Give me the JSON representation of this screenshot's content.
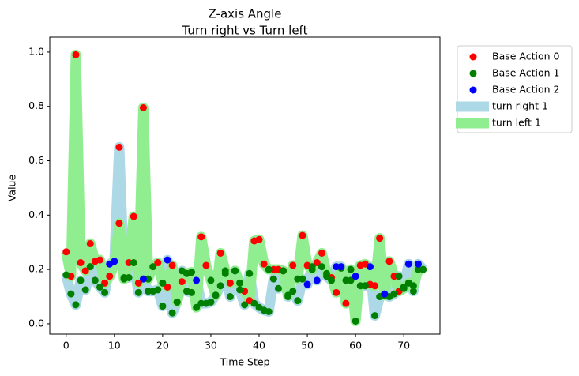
{
  "chart_data": {
    "type": "scatter",
    "title": "Z-axis Angle",
    "subtitle": "Turn right vs Turn left",
    "xlabel": "Time Step",
    "ylabel": "Value",
    "xlim": [
      -3.4,
      77.5
    ],
    "ylim": [
      -0.038,
      1.055
    ],
    "xticks": [
      0,
      10,
      20,
      30,
      40,
      50,
      60,
      70
    ],
    "yticks": [
      {
        "value": 0,
        "label": "0.0"
      },
      {
        "value": 0.2,
        "label": "0.2"
      },
      {
        "value": 0.4,
        "label": "0.4"
      },
      {
        "value": 0.6,
        "label": "0.6"
      },
      {
        "value": 0.8,
        "label": "0.8"
      },
      {
        "value": 1,
        "label": "1.0"
      }
    ],
    "legend": "outside-upper-right",
    "x": [
      0,
      1,
      2,
      3,
      4,
      5,
      6,
      7,
      8,
      9,
      10,
      11,
      12,
      13,
      14,
      15,
      16,
      17,
      18,
      19,
      20,
      21,
      22,
      23,
      24,
      25,
      26,
      27,
      28,
      29,
      30,
      31,
      32,
      33,
      34,
      35,
      36,
      37,
      38,
      39,
      40,
      41,
      42,
      43,
      44,
      45,
      46,
      47,
      48,
      49,
      50,
      51,
      52,
      53,
      54,
      55,
      56,
      57,
      58,
      59,
      60,
      61,
      62,
      63,
      64,
      65,
      66,
      67,
      68,
      69,
      70,
      71,
      72,
      73,
      74
    ],
    "line_series": [
      {
        "name": "turn right 1",
        "color": "#add8e6",
        "values": [
          0.18,
          0.11,
          0.07,
          0.16,
          0.125,
          0.21,
          0.16,
          0.135,
          0.115,
          0.22,
          0.23,
          0.65,
          0.17,
          0.17,
          0.225,
          0.115,
          0.165,
          0.12,
          0.12,
          0.125,
          0.065,
          0.235,
          0.04,
          0.08,
          0.195,
          0.12,
          0.115,
          0.16,
          0.075,
          0.075,
          0.08,
          0.105,
          0.14,
          0.185,
          0.1,
          0.195,
          0.125,
          0.07,
          0.185,
          0.075,
          0.06,
          0.05,
          0.045,
          0.165,
          0.13,
          0.195,
          0.1,
          0.12,
          0.085,
          0.165,
          0.145,
          0.21,
          0.16,
          0.21,
          0.175,
          0.16,
          0.21,
          0.21,
          0.16,
          0.16,
          0.175,
          0.14,
          0.14,
          0.21,
          0.03,
          0.1,
          0.11,
          0.1,
          0.11,
          0.175,
          0.135,
          0.22,
          0.12,
          0.22,
          0.2
        ]
      },
      {
        "name": "turn left 1",
        "color": "#90ee90",
        "values": [
          0.265,
          0.175,
          0.99,
          0.225,
          0.195,
          0.295,
          0.23,
          0.235,
          0.15,
          0.175,
          0.22,
          0.37,
          0.165,
          0.225,
          0.395,
          0.15,
          0.795,
          0.165,
          0.21,
          0.225,
          0.15,
          0.135,
          0.215,
          0.08,
          0.155,
          0.185,
          0.19,
          0.06,
          0.32,
          0.215,
          0.16,
          0.105,
          0.26,
          0.195,
          0.15,
          0.195,
          0.15,
          0.12,
          0.085,
          0.305,
          0.31,
          0.22,
          0.2,
          0.2,
          0.2,
          0.195,
          0.105,
          0.215,
          0.165,
          0.325,
          0.215,
          0.2,
          0.225,
          0.26,
          0.185,
          0.17,
          0.115,
          0.205,
          0.075,
          0.2,
          0.01,
          0.215,
          0.22,
          0.145,
          0.14,
          0.315,
          0.105,
          0.23,
          0.175,
          0.12,
          0.13,
          0.15,
          0.14,
          0.2,
          0.2
        ]
      }
    ],
    "series": [
      {
        "name": "Base Action 0",
        "color": "red",
        "x": [
          0,
          1,
          2,
          3,
          4,
          5,
          6,
          7,
          8,
          9,
          11,
          11,
          13,
          14,
          15,
          16,
          19,
          21,
          22,
          24,
          28,
          29,
          32,
          34,
          37,
          38,
          39,
          40,
          41,
          43,
          44,
          45,
          47,
          49,
          50,
          52,
          53,
          55,
          56,
          58,
          61,
          62,
          63,
          64,
          65,
          67,
          68,
          69
        ],
        "values": [
          0.265,
          0.175,
          0.99,
          0.225,
          0.195,
          0.295,
          0.23,
          0.235,
          0.15,
          0.175,
          0.37,
          0.65,
          0.225,
          0.395,
          0.15,
          0.795,
          0.225,
          0.135,
          0.215,
          0.155,
          0.32,
          0.215,
          0.26,
          0.15,
          0.12,
          0.085,
          0.305,
          0.31,
          0.22,
          0.2,
          0.2,
          0.195,
          0.215,
          0.325,
          0.215,
          0.225,
          0.26,
          0.17,
          0.115,
          0.075,
          0.215,
          0.22,
          0.145,
          0.14,
          0.315,
          0.23,
          0.175,
          0.12
        ]
      },
      {
        "name": "Base Action 1",
        "color": "green",
        "x": [
          12,
          17,
          18,
          20,
          23,
          25,
          26,
          27,
          30,
          31,
          33,
          35,
          36,
          42,
          46,
          48,
          51,
          54,
          57,
          59,
          60,
          66,
          70,
          71,
          72,
          73,
          74,
          0,
          1,
          2,
          3,
          4,
          5,
          6,
          7,
          8,
          12,
          13,
          14,
          15,
          17,
          18,
          19,
          20,
          22,
          23,
          24,
          25,
          26,
          28,
          29,
          30,
          31,
          32,
          33,
          34,
          35,
          36,
          37,
          38,
          39,
          40,
          41,
          42,
          43,
          44,
          45,
          46,
          47,
          48,
          49,
          51,
          53,
          54,
          55,
          58,
          59,
          61,
          62,
          64,
          65,
          67,
          68,
          69,
          70,
          72,
          74
        ],
        "values": [
          0.165,
          0.165,
          0.21,
          0.15,
          0.08,
          0.185,
          0.19,
          0.06,
          0.16,
          0.105,
          0.195,
          0.195,
          0.15,
          0.2,
          0.105,
          0.165,
          0.2,
          0.185,
          0.205,
          0.2,
          0.01,
          0.105,
          0.13,
          0.15,
          0.14,
          0.2,
          0.2,
          0.18,
          0.11,
          0.07,
          0.16,
          0.125,
          0.21,
          0.16,
          0.135,
          0.115,
          0.17,
          0.17,
          0.225,
          0.115,
          0.12,
          0.12,
          0.125,
          0.065,
          0.04,
          0.08,
          0.195,
          0.12,
          0.115,
          0.075,
          0.075,
          0.08,
          0.105,
          0.14,
          0.185,
          0.1,
          0.195,
          0.125,
          0.07,
          0.185,
          0.075,
          0.06,
          0.05,
          0.045,
          0.165,
          0.13,
          0.195,
          0.1,
          0.12,
          0.085,
          0.165,
          0.21,
          0.21,
          0.175,
          0.16,
          0.16,
          0.16,
          0.14,
          0.14,
          0.03,
          0.1,
          0.1,
          0.11,
          0.175,
          0.135,
          0.12,
          0.2
        ]
      },
      {
        "name": "Base Action 2",
        "color": "blue",
        "x": [
          9,
          10,
          16,
          21,
          27,
          50,
          52,
          56,
          57,
          60,
          63,
          66,
          71,
          73
        ],
        "values": [
          0.22,
          0.23,
          0.165,
          0.235,
          0.16,
          0.145,
          0.16,
          0.21,
          0.21,
          0.175,
          0.21,
          0.11,
          0.22,
          0.22
        ]
      }
    ]
  }
}
